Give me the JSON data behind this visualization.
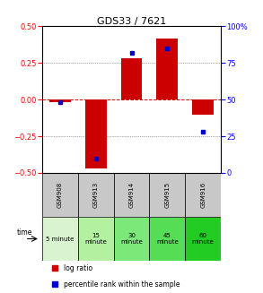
{
  "title": "GDS33 / 7621",
  "samples": [
    "GSM908",
    "GSM913",
    "GSM914",
    "GSM915",
    "GSM916"
  ],
  "log_ratios": [
    -0.02,
    -0.47,
    0.28,
    0.42,
    -0.1
  ],
  "percentile_ranks": [
    48,
    10,
    82,
    85,
    28
  ],
  "time_labels_line1": [
    "5 minute",
    "15",
    "30",
    "45",
    "60"
  ],
  "time_labels_line2": [
    "",
    "minute",
    "minute",
    "minute",
    "minute"
  ],
  "time_bg_colors": [
    "#d9f2d0",
    "#b3f0a0",
    "#7de87a",
    "#55dd55",
    "#22cc22"
  ],
  "sample_bg_color": "#c8c8c8",
  "ylim_left": [
    -0.5,
    0.5
  ],
  "ylim_right": [
    0,
    100
  ],
  "bar_color": "#cc0000",
  "percentile_color": "#0000cc",
  "yticks_left": [
    -0.5,
    -0.25,
    0,
    0.25,
    0.5
  ],
  "yticks_right": [
    0,
    25,
    50,
    75,
    100
  ],
  "zero_line_color": "#cc0000",
  "dot_line_color": "#555555",
  "figsize": [
    2.93,
    3.27
  ],
  "dpi": 100
}
